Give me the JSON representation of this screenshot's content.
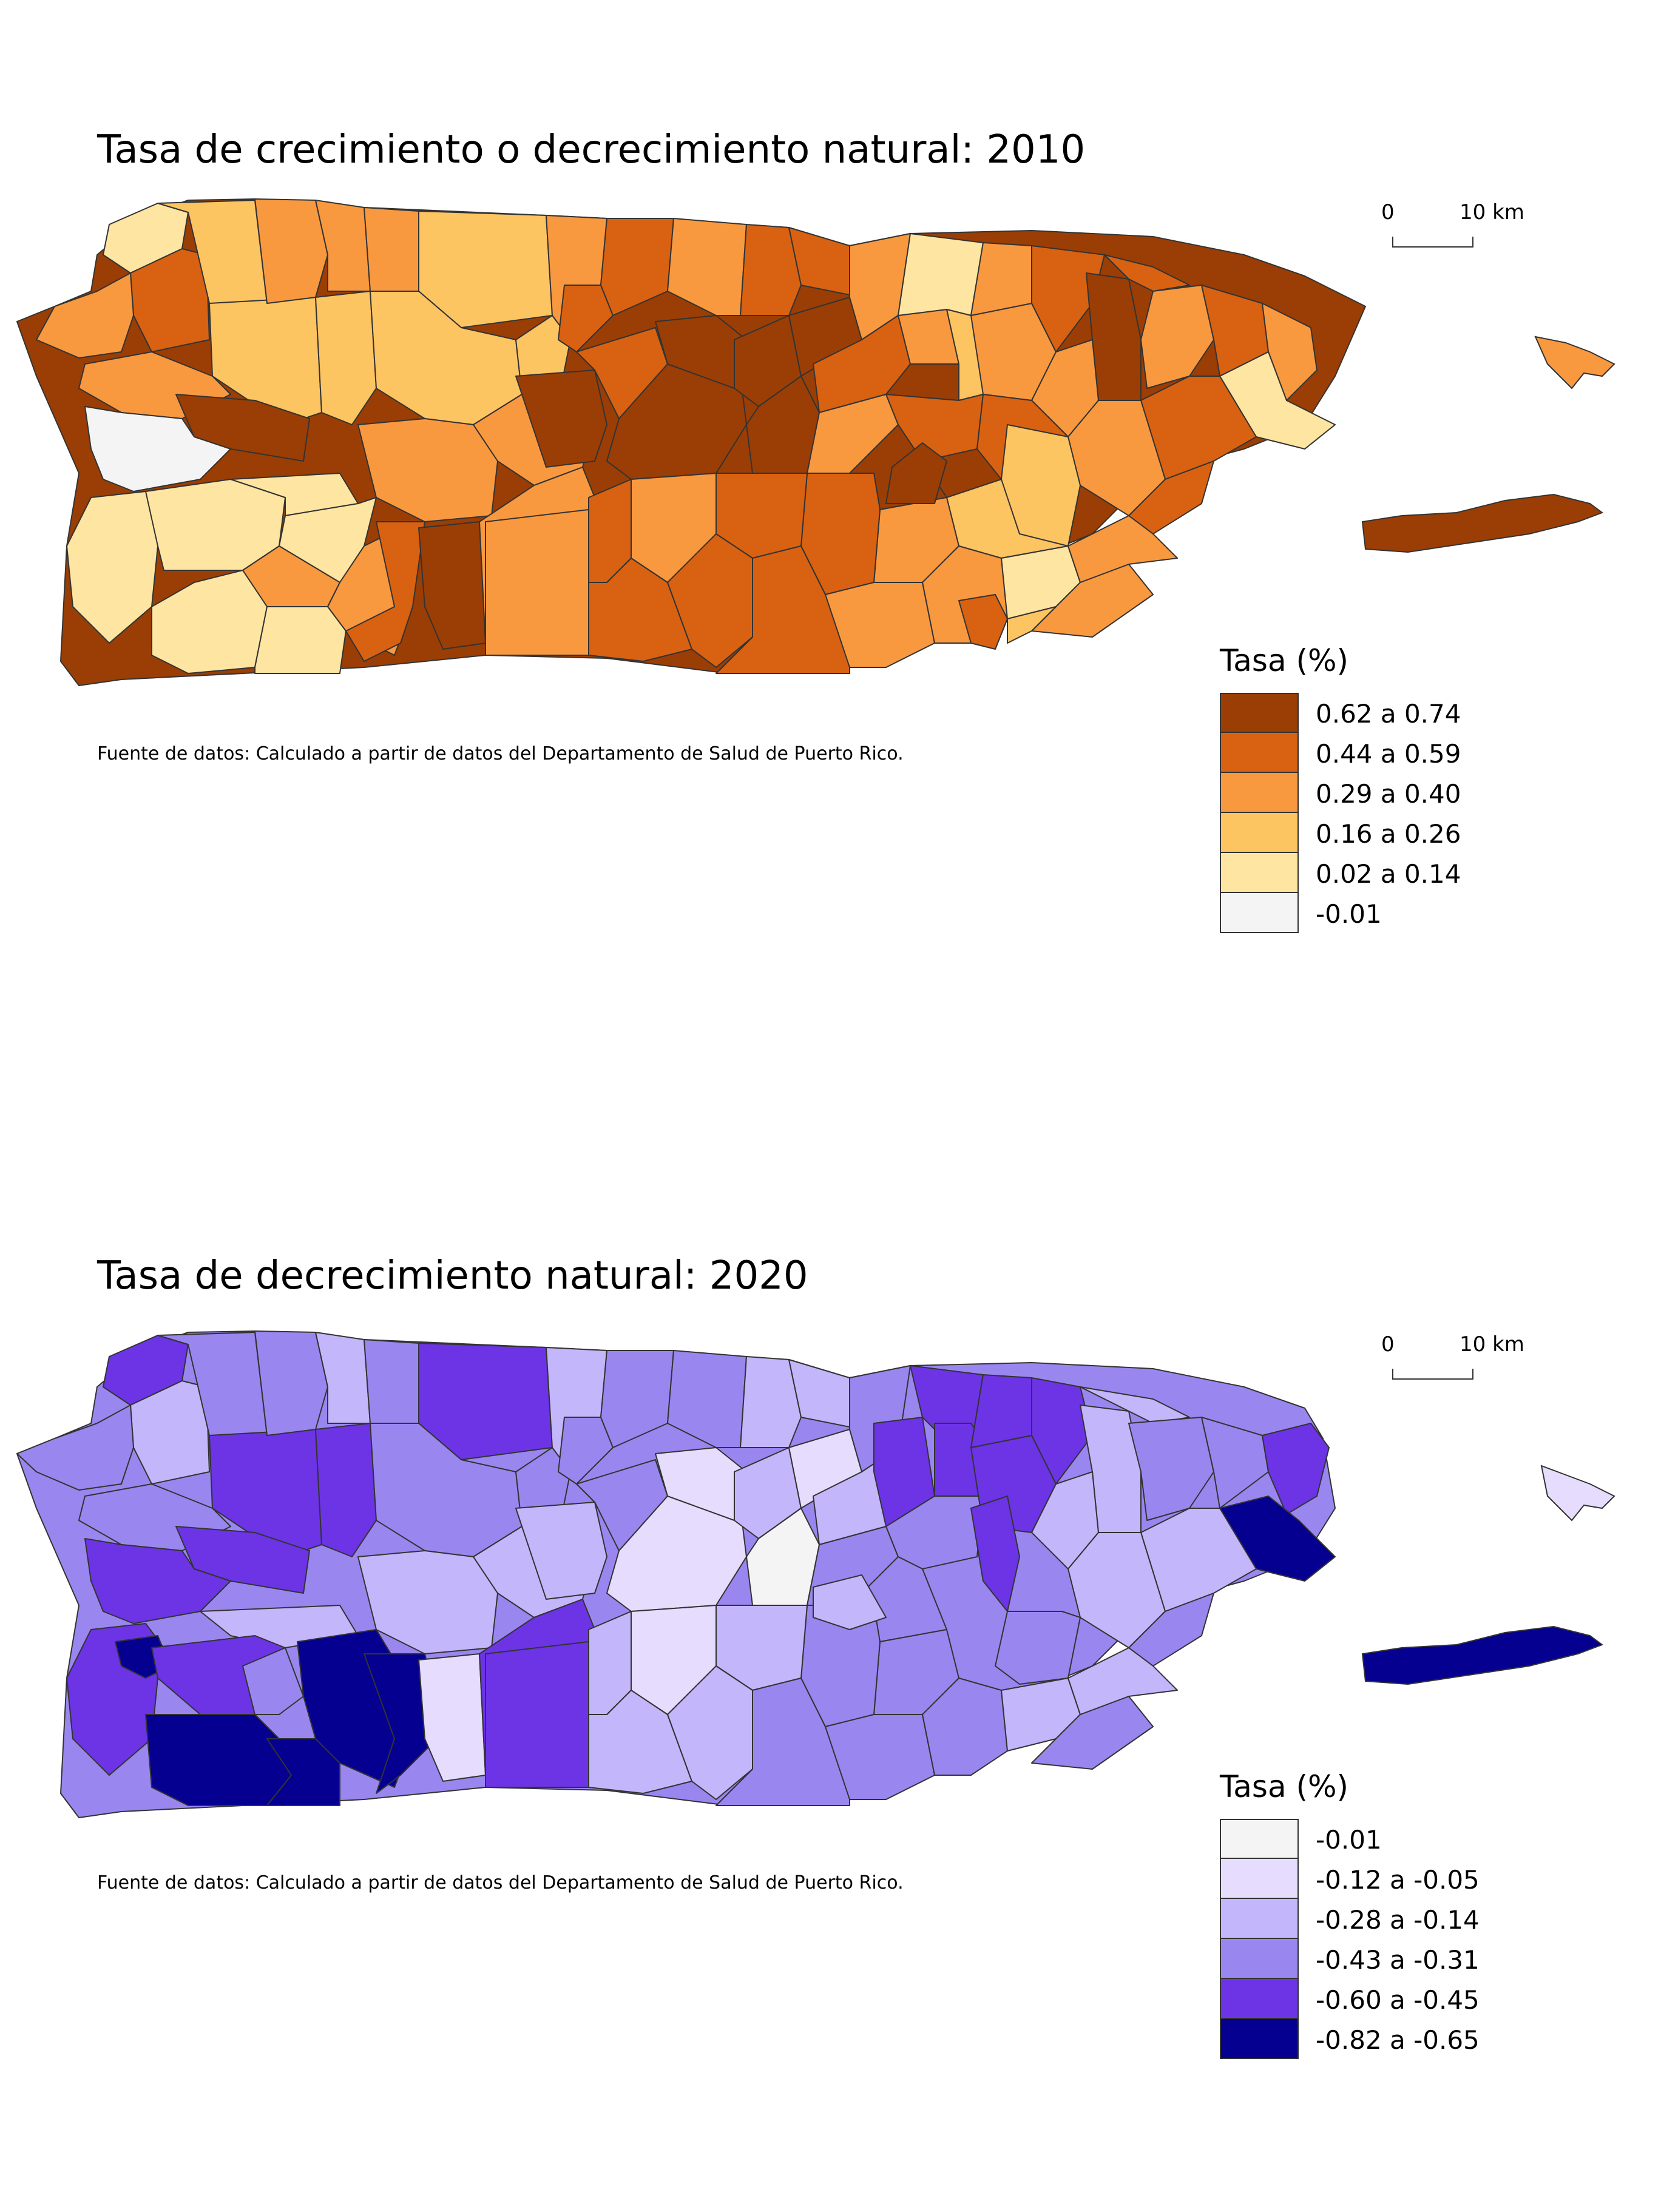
{
  "maps": [
    {
      "title": "Tasa de crecimiento o decrecimiento natural: 2010",
      "scale": {
        "zero": "0",
        "distance": "10 km"
      },
      "source": "Fuente de datos: Calculado a partir de datos del Departamento de Salud de Puerto Rico.",
      "legend": {
        "title": "Tasa (%)",
        "classes": [
          {
            "label": "0.62 a 0.74",
            "color": "#9a3e05"
          },
          {
            "label": "0.44 a 0.59",
            "color": "#d86211"
          },
          {
            "label": "0.29 a 0.40",
            "color": "#f9993f"
          },
          {
            "label": "0.16 a 0.26",
            "color": "#fdc462"
          },
          {
            "label": "0.02 a 0.14",
            "color": "#fee5a1"
          },
          {
            "label": "-0.01",
            "color": "#f4f4f4"
          }
        ]
      },
      "regions": {
        "west_blank": "#f4f4f4",
        "island_east": "#9a3e05",
        "island_north": "#f9993f"
      }
    },
    {
      "title": "Tasa de decrecimiento natural: 2020",
      "scale": {
        "zero": "0",
        "distance": "10 km"
      },
      "source": "Fuente de datos: Calculado a partir de datos del Departamento de Salud de Puerto Rico.",
      "legend": {
        "title": "Tasa (%)",
        "classes": [
          {
            "label": "-0.01",
            "color": "#f4f4f4"
          },
          {
            "label": "-0.12 a -0.05",
            "color": "#e6dcfd"
          },
          {
            "label": "-0.28 a -0.14",
            "color": "#c3b6fb"
          },
          {
            "label": "-0.43 a -0.31",
            "color": "#9987ef"
          },
          {
            "label": "-0.60 a -0.45",
            "color": "#6c34e5"
          },
          {
            "label": "-0.82 a -0.65",
            "color": "#05008f"
          }
        ]
      },
      "regions": {
        "island_east": "#05008f",
        "island_north": "#e6dcfd"
      }
    }
  ]
}
